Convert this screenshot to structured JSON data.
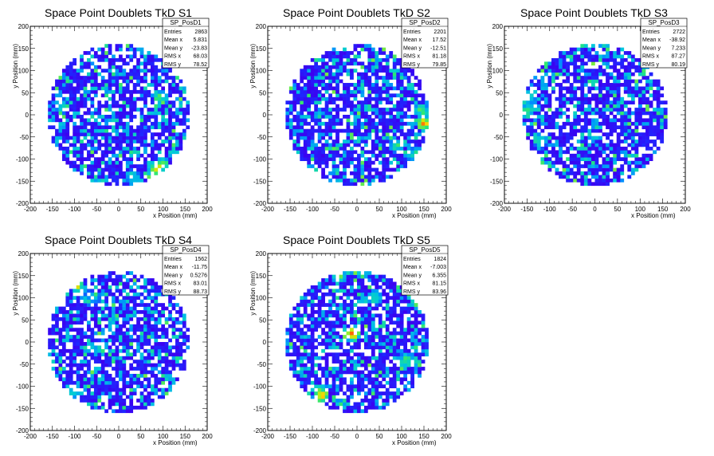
{
  "chart_data": [
    {
      "type": "heatmap",
      "title": "Space Point Doublets TkD S1",
      "xlabel": "x Position (mm)",
      "ylabel": "y Position (mm)",
      "xlim": [
        -200,
        200
      ],
      "ylim": [
        -200,
        200
      ],
      "xticks": [
        -200,
        -150,
        -100,
        -50,
        0,
        50,
        100,
        150,
        200
      ],
      "yticks": [
        -200,
        -150,
        -100,
        -50,
        0,
        50,
        100,
        150,
        200
      ],
      "detector_radius": 160,
      "stats": {
        "name": "SP_PosD1",
        "rows": [
          {
            "label": "Entries",
            "value": "2863"
          },
          {
            "label": "Mean x",
            "value": "5.831"
          },
          {
            "label": "Mean y",
            "value": "-23.83"
          },
          {
            "label": "RMS x",
            "value": "68.03"
          },
          {
            "label": "RMS y",
            "value": "78.52"
          }
        ]
      },
      "hotspots": [
        {
          "x": 95,
          "y": 40,
          "level": 0.55
        },
        {
          "x": 85,
          "y": -120,
          "level": 0.8
        },
        {
          "x": 95,
          "y": -115,
          "level": 0.7
        },
        {
          "x": -130,
          "y": 20,
          "level": 0.45
        },
        {
          "x": 30,
          "y": -140,
          "level": 0.5
        }
      ]
    },
    {
      "type": "heatmap",
      "title": "Space Point Doublets TkD S2",
      "xlabel": "x Position (mm)",
      "ylabel": "y Position (mm)",
      "xlim": [
        -200,
        200
      ],
      "ylim": [
        -200,
        200
      ],
      "xticks": [
        -200,
        -150,
        -100,
        -50,
        0,
        50,
        100,
        150,
        200
      ],
      "yticks": [
        -200,
        -150,
        -100,
        -50,
        0,
        50,
        100,
        150,
        200
      ],
      "detector_radius": 160,
      "stats": {
        "name": "SP_PosD2",
        "rows": [
          {
            "label": "Entries",
            "value": "2201"
          },
          {
            "label": "Mean x",
            "value": "17.52"
          },
          {
            "label": "Mean y",
            "value": "-12.51"
          },
          {
            "label": "RMS x",
            "value": "81.18"
          },
          {
            "label": "RMS y",
            "value": "79.85"
          }
        ]
      },
      "hotspots": [
        {
          "x": 150,
          "y": -20,
          "level": 0.85
        },
        {
          "x": 145,
          "y": 10,
          "level": 0.6
        },
        {
          "x": 90,
          "y": -70,
          "level": 0.5
        },
        {
          "x": 130,
          "y": -90,
          "level": 0.55
        }
      ]
    },
    {
      "type": "heatmap",
      "title": "Space Point Doublets TkD S3",
      "xlabel": "x Position (mm)",
      "ylabel": "y Position (mm)",
      "xlim": [
        -200,
        200
      ],
      "ylim": [
        -200,
        200
      ],
      "xticks": [
        -200,
        -150,
        -100,
        -50,
        0,
        50,
        100,
        150,
        200
      ],
      "yticks": [
        -200,
        -150,
        -100,
        -50,
        0,
        50,
        100,
        150,
        200
      ],
      "detector_radius": 160,
      "stats": {
        "name": "SP_PosD3",
        "rows": [
          {
            "label": "Entries",
            "value": "2722"
          },
          {
            "label": "Mean x",
            "value": "-38.92"
          },
          {
            "label": "Mean y",
            "value": "7.233"
          },
          {
            "label": "RMS x",
            "value": "87.27"
          },
          {
            "label": "RMS y",
            "value": "80.19"
          }
        ]
      },
      "hotspots": [
        {
          "x": -150,
          "y": 10,
          "level": 0.55
        },
        {
          "x": -130,
          "y": -115,
          "level": 0.8
        },
        {
          "x": -145,
          "y": 40,
          "level": 0.5
        },
        {
          "x": -120,
          "y": -60,
          "level": 0.45
        }
      ]
    },
    {
      "type": "heatmap",
      "title": "Space Point Doublets TkD S4",
      "xlabel": "x Position (mm)",
      "ylabel": "y Position (mm)",
      "xlim": [
        -200,
        200
      ],
      "ylim": [
        -200,
        200
      ],
      "xticks": [
        -200,
        -150,
        -100,
        -50,
        0,
        50,
        100,
        150,
        200
      ],
      "yticks": [
        -200,
        -150,
        -100,
        -50,
        0,
        50,
        100,
        150,
        200
      ],
      "detector_radius": 160,
      "stats": {
        "name": "SP_PosD4",
        "rows": [
          {
            "label": "Entries",
            "value": "1562"
          },
          {
            "label": "Mean x",
            "value": "-11.75"
          },
          {
            "label": "Mean y",
            "value": "0.5276"
          },
          {
            "label": "RMS x",
            "value": "83.01"
          },
          {
            "label": "RMS y",
            "value": "88.73"
          }
        ]
      },
      "hotspots": [
        {
          "x": -95,
          "y": 130,
          "level": 0.8
        },
        {
          "x": -100,
          "y": -110,
          "level": 0.5
        },
        {
          "x": -60,
          "y": 100,
          "level": 0.4
        }
      ]
    },
    {
      "type": "heatmap",
      "title": "Space Point Doublets TkD S5",
      "xlabel": "x Position (mm)",
      "ylabel": "y Position (mm)",
      "xlim": [
        -200,
        200
      ],
      "ylim": [
        -200,
        200
      ],
      "xticks": [
        -200,
        -150,
        -100,
        -50,
        0,
        50,
        100,
        150,
        200
      ],
      "yticks": [
        -200,
        -150,
        -100,
        -50,
        0,
        50,
        100,
        150,
        200
      ],
      "detector_radius": 160,
      "stats": {
        "name": "SP_PosD5",
        "rows": [
          {
            "label": "Entries",
            "value": "1824"
          },
          {
            "label": "Mean x",
            "value": "-7.003"
          },
          {
            "label": "Mean y",
            "value": "6.355"
          },
          {
            "label": "RMS x",
            "value": "81.15"
          },
          {
            "label": "RMS y",
            "value": "83.96"
          }
        ]
      },
      "hotspots": [
        {
          "x": -10,
          "y": 20,
          "level": 0.9
        },
        {
          "x": -80,
          "y": -120,
          "level": 0.85
        },
        {
          "x": -40,
          "y": 150,
          "level": 0.6
        },
        {
          "x": 40,
          "y": 100,
          "level": 0.5
        },
        {
          "x": 110,
          "y": -40,
          "level": 0.55
        }
      ]
    }
  ]
}
